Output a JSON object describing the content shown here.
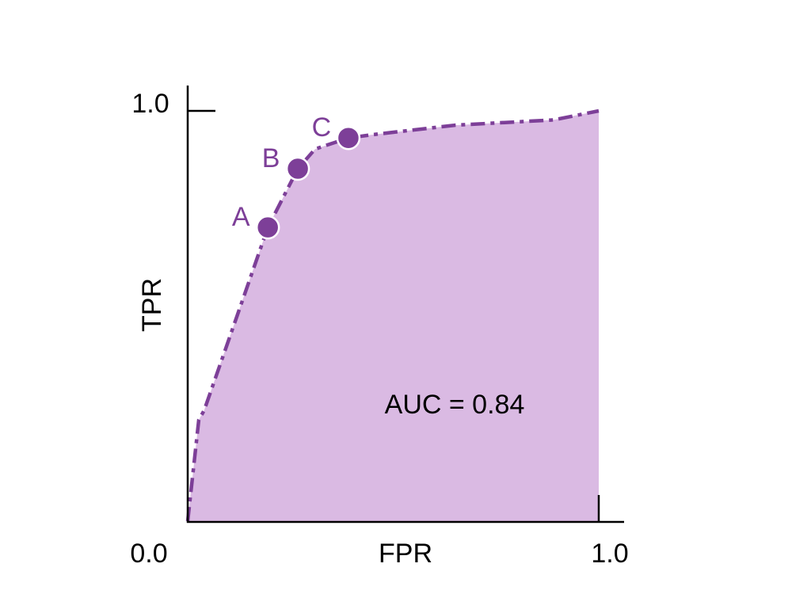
{
  "chart_data": {
    "type": "area",
    "title": "",
    "xlabel": "FPR",
    "ylabel": "TPR",
    "xlim": [
      0,
      1
    ],
    "ylim": [
      0,
      1
    ],
    "x_tick_labels": [
      "0.0",
      "1.0"
    ],
    "y_tick_labels": [
      "1.0"
    ],
    "grid": false,
    "curve": {
      "x": [
        0,
        0.027,
        0.04,
        0.12,
        0.195,
        0.268,
        0.31,
        0.391,
        0.45,
        0.65,
        0.89,
        1.0
      ],
      "y": [
        0,
        0.247,
        0.27,
        0.5,
        0.716,
        0.859,
        0.907,
        0.934,
        0.942,
        0.965,
        0.978,
        1.0
      ]
    },
    "points": [
      {
        "label": "A",
        "x": 0.195,
        "y": 0.716
      },
      {
        "label": "B",
        "x": 0.268,
        "y": 0.859
      },
      {
        "label": "C",
        "x": 0.391,
        "y": 0.934
      }
    ],
    "annotation": "AUC = 0.84",
    "colors": {
      "fill": "#dabae3",
      "line": "#7d3f98",
      "point": "#7d3f98",
      "axis": "#000000"
    }
  }
}
